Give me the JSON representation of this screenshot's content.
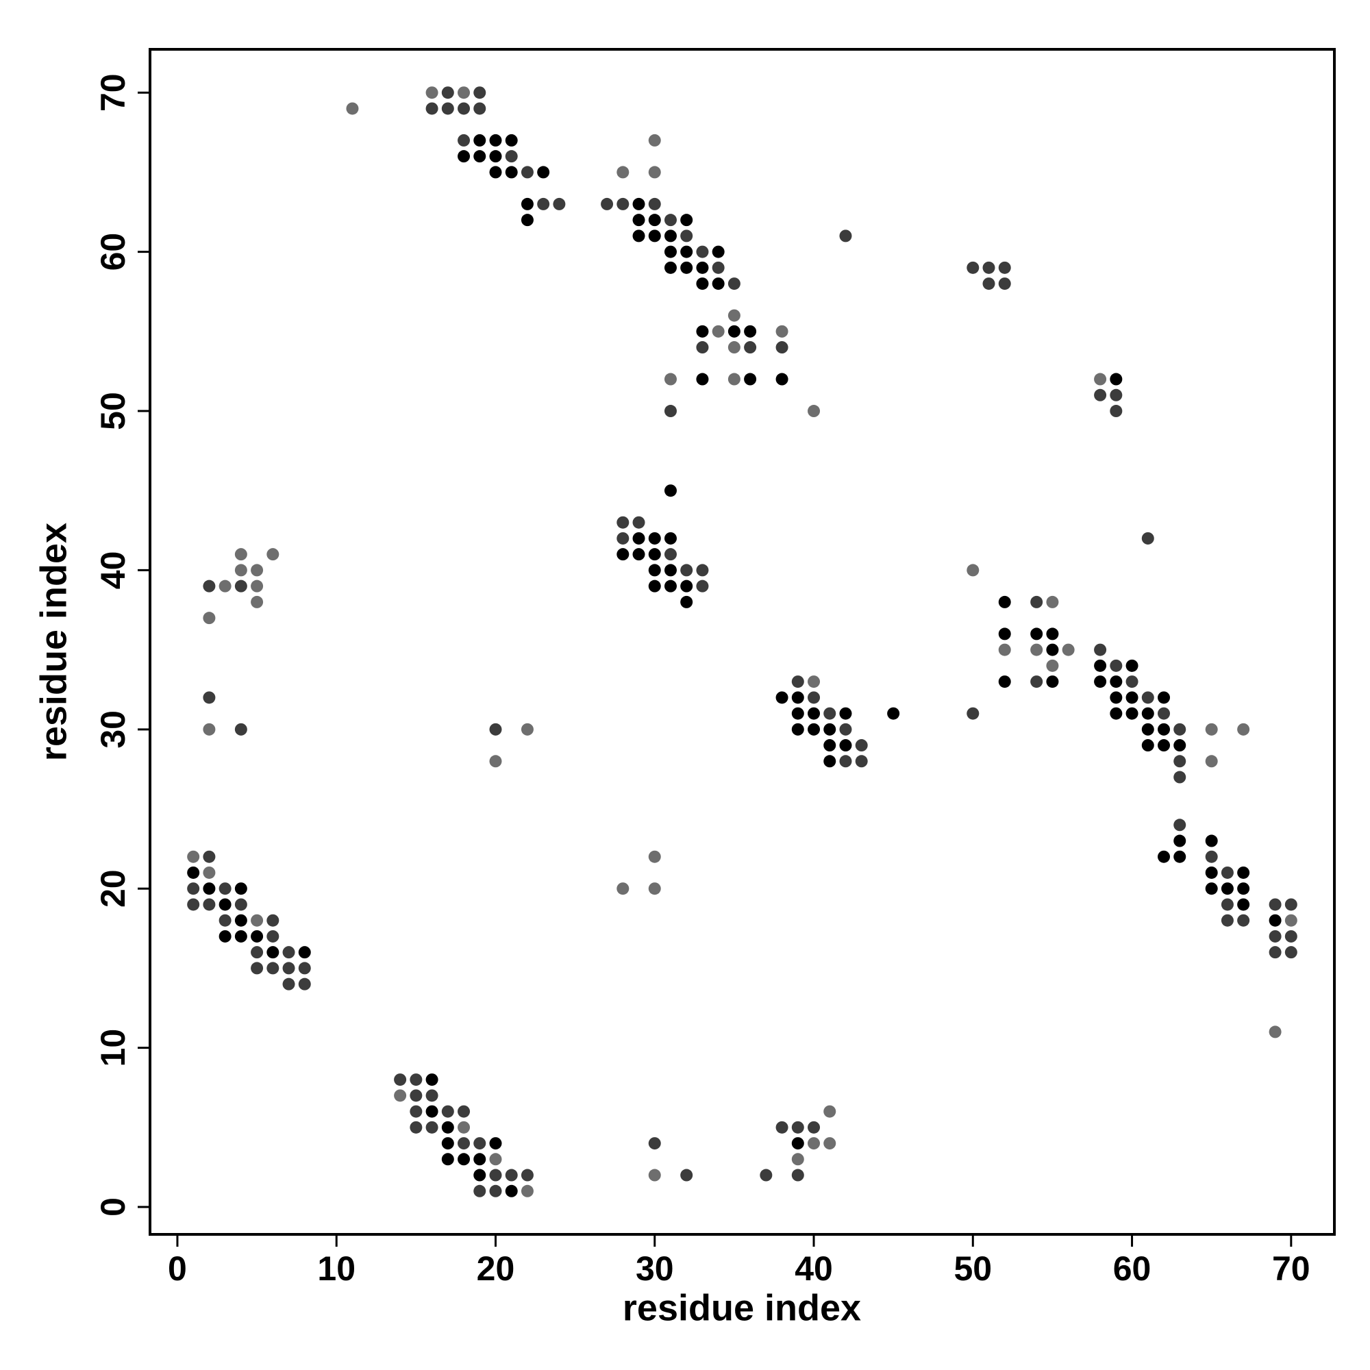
{
  "chart_data": {
    "type": "scatter",
    "xlabel": "residue index",
    "ylabel": "residue index",
    "xlim": [
      -1.72,
      72.72
    ],
    "ylim": [
      -1.72,
      72.72
    ],
    "xticks": [
      0,
      10,
      20,
      30,
      40,
      50,
      60,
      70
    ],
    "yticks": [
      0,
      10,
      20,
      30,
      40,
      50,
      60,
      70
    ],
    "series": [
      {
        "color": "#000000",
        "x": [
          19,
          20,
          21,
          18,
          19,
          20,
          20,
          21,
          23,
          22,
          29,
          22,
          29,
          30,
          32,
          29,
          30,
          31,
          31,
          32,
          34,
          31,
          32,
          33,
          33,
          34,
          33,
          35,
          36,
          33,
          36,
          38,
          59,
          31,
          29,
          30,
          31,
          28,
          29,
          30,
          30,
          31,
          30,
          31,
          32,
          32,
          52,
          52,
          54,
          55,
          55,
          58,
          60,
          52,
          55,
          58,
          59,
          38,
          39,
          59,
          60,
          62,
          39,
          40,
          42,
          45,
          59,
          60,
          61,
          39,
          40,
          41,
          61,
          62,
          41,
          42,
          61,
          62,
          63,
          41,
          63,
          65,
          62,
          63,
          1,
          65,
          67,
          2,
          4,
          65,
          66,
          67,
          3,
          67,
          4,
          69,
          3,
          4,
          5,
          6,
          8,
          16,
          16,
          17,
          17,
          20,
          39,
          17,
          18,
          19,
          19,
          21
        ],
        "y": [
          67,
          67,
          67,
          66,
          66,
          66,
          65,
          65,
          65,
          63,
          63,
          62,
          62,
          62,
          62,
          61,
          61,
          61,
          60,
          60,
          60,
          59,
          59,
          59,
          58,
          58,
          55,
          55,
          55,
          52,
          52,
          52,
          52,
          45,
          42,
          42,
          42,
          41,
          41,
          41,
          40,
          40,
          39,
          39,
          39,
          38,
          38,
          36,
          36,
          36,
          35,
          34,
          34,
          33,
          33,
          33,
          33,
          32,
          32,
          32,
          32,
          32,
          31,
          31,
          31,
          31,
          31,
          31,
          31,
          30,
          30,
          30,
          30,
          30,
          29,
          29,
          29,
          29,
          29,
          28,
          23,
          23,
          22,
          22,
          21,
          21,
          21,
          20,
          20,
          20,
          20,
          20,
          19,
          19,
          18,
          18,
          17,
          17,
          17,
          16,
          16,
          8,
          6,
          5,
          4,
          4,
          4,
          3,
          3,
          3,
          2,
          1
        ]
      },
      {
        "color": "#3c3c3c",
        "x": [
          17,
          19,
          16,
          17,
          18,
          19,
          18,
          21,
          22,
          23,
          24,
          27,
          28,
          30,
          31,
          32,
          42,
          33,
          34,
          50,
          51,
          52,
          35,
          51,
          52,
          33,
          36,
          38,
          58,
          59,
          31,
          59,
          28,
          29,
          28,
          61,
          31,
          32,
          33,
          2,
          4,
          33,
          54,
          58,
          59,
          39,
          54,
          60,
          2,
          40,
          61,
          41,
          50,
          62,
          4,
          20,
          42,
          63,
          43,
          42,
          43,
          63,
          63,
          63,
          2,
          65,
          66,
          1,
          3,
          1,
          2,
          4,
          66,
          69,
          70,
          3,
          6,
          66,
          67,
          6,
          69,
          70,
          5,
          7,
          69,
          70,
          5,
          6,
          7,
          8,
          7,
          8,
          14,
          15,
          15,
          16,
          15,
          17,
          18,
          15,
          16,
          38,
          39,
          40,
          18,
          19,
          30,
          20,
          21,
          22,
          32,
          37,
          39,
          19,
          20
        ],
        "y": [
          70,
          70,
          69,
          69,
          69,
          69,
          67,
          66,
          65,
          63,
          63,
          63,
          63,
          63,
          62,
          61,
          61,
          60,
          59,
          59,
          59,
          59,
          58,
          58,
          58,
          54,
          54,
          54,
          51,
          51,
          50,
          50,
          43,
          43,
          42,
          42,
          41,
          40,
          40,
          39,
          39,
          39,
          38,
          35,
          34,
          33,
          33,
          33,
          32,
          32,
          32,
          31,
          31,
          31,
          30,
          30,
          30,
          30,
          29,
          28,
          28,
          28,
          27,
          24,
          22,
          22,
          21,
          20,
          20,
          19,
          19,
          19,
          19,
          19,
          19,
          18,
          18,
          18,
          18,
          17,
          17,
          17,
          16,
          16,
          16,
          16,
          15,
          15,
          15,
          15,
          14,
          14,
          8,
          8,
          7,
          7,
          6,
          6,
          6,
          5,
          5,
          5,
          5,
          5,
          4,
          4,
          4,
          2,
          2,
          2,
          2,
          2,
          2,
          1,
          1
        ]
      },
      {
        "color": "#6e6e6e",
        "x": [
          16,
          18,
          11,
          30,
          28,
          30,
          35,
          34,
          38,
          35,
          31,
          35,
          58,
          40,
          4,
          6,
          4,
          5,
          50,
          3,
          5,
          5,
          55,
          2,
          52,
          54,
          56,
          55,
          40,
          2,
          22,
          65,
          67,
          20,
          65,
          1,
          30,
          2,
          28,
          30,
          5,
          70,
          69,
          14,
          41,
          18,
          40,
          41,
          20,
          39,
          30,
          22
        ],
        "y": [
          70,
          70,
          69,
          67,
          65,
          65,
          56,
          55,
          55,
          54,
          52,
          52,
          52,
          50,
          41,
          41,
          40,
          40,
          40,
          39,
          39,
          38,
          38,
          37,
          35,
          35,
          35,
          34,
          33,
          30,
          30,
          30,
          30,
          28,
          28,
          22,
          22,
          21,
          20,
          20,
          18,
          18,
          11,
          7,
          6,
          5,
          4,
          4,
          3,
          3,
          2,
          1
        ]
      }
    ]
  }
}
